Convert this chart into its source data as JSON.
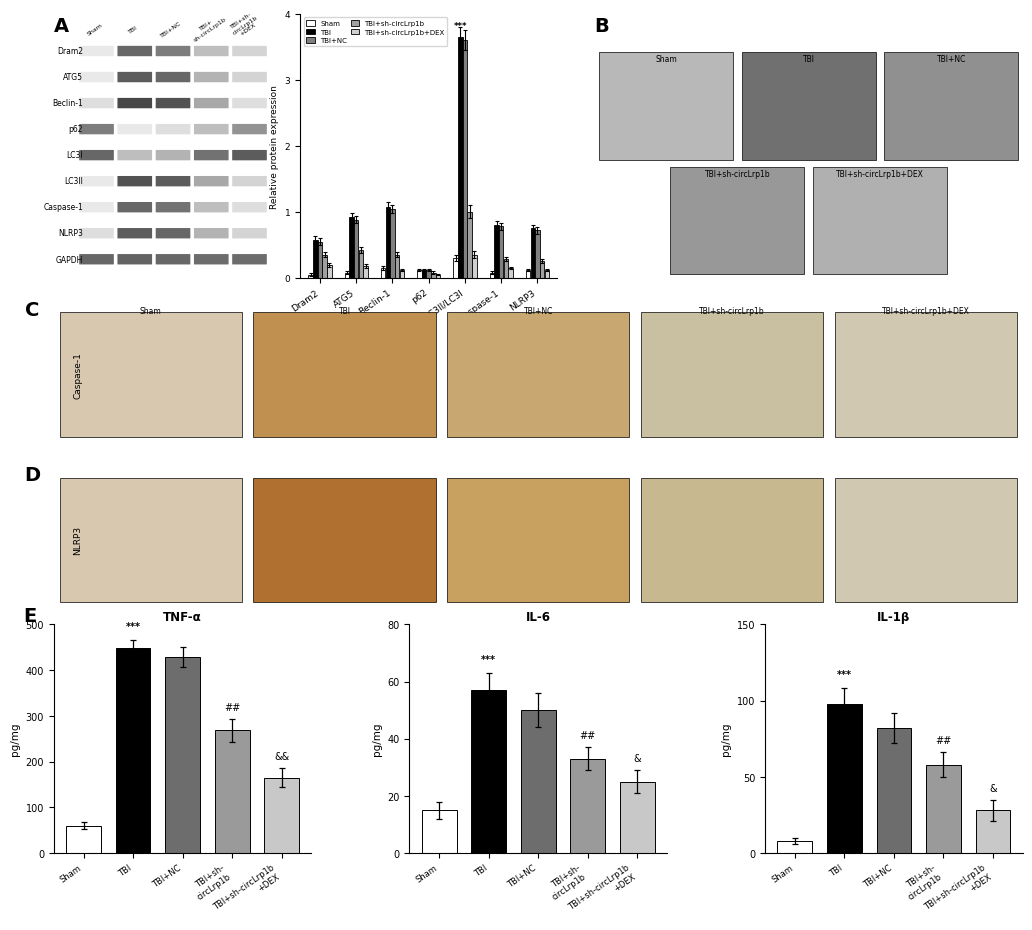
{
  "panel_A_bar": {
    "groups": [
      "Dram2",
      "ATG5",
      "Beclin-1",
      "p62",
      "LC3II/LC3I",
      "Caspase-1",
      "NLRP3"
    ],
    "series": {
      "Sham": [
        0.05,
        0.08,
        0.15,
        0.12,
        0.3,
        0.08,
        0.12
      ],
      "TBI": [
        0.58,
        0.92,
        1.08,
        0.12,
        3.65,
        0.8,
        0.75
      ],
      "TBI+NC": [
        0.55,
        0.88,
        1.05,
        0.12,
        3.6,
        0.78,
        0.72
      ],
      "TBI+sh-circLrp1b": [
        0.35,
        0.42,
        0.35,
        0.08,
        1.0,
        0.28,
        0.25
      ],
      "TBI+sh-circLrp1b+DEX": [
        0.2,
        0.18,
        0.12,
        0.05,
        0.35,
        0.15,
        0.12
      ]
    },
    "errors": {
      "Sham": [
        0.02,
        0.02,
        0.03,
        0.02,
        0.05,
        0.02,
        0.02
      ],
      "TBI": [
        0.05,
        0.06,
        0.07,
        0.02,
        0.15,
        0.06,
        0.05
      ],
      "TBI+NC": [
        0.05,
        0.05,
        0.06,
        0.02,
        0.15,
        0.05,
        0.05
      ],
      "TBI+sh-circLrp1b": [
        0.04,
        0.05,
        0.04,
        0.02,
        0.1,
        0.03,
        0.03
      ],
      "TBI+sh-circLrp1b+DEX": [
        0.03,
        0.03,
        0.02,
        0.01,
        0.05,
        0.02,
        0.02
      ]
    },
    "colors": [
      "#ffffff",
      "#000000",
      "#808080",
      "#a0a0a0",
      "#d0d0d0"
    ],
    "ylim": [
      0,
      4
    ],
    "yticks": [
      0,
      1,
      2,
      3,
      4
    ],
    "ylabel": "Relative protein expression"
  },
  "panel_E_TNFa": {
    "categories": [
      "Sham",
      "TBI",
      "TBI+NC",
      "TBI+sh-\ncircLrp1b",
      "TBI+sh-circLrp1b\n+DEX"
    ],
    "values": [
      60,
      448,
      428,
      268,
      165
    ],
    "errors": [
      8,
      18,
      22,
      25,
      20
    ],
    "colors": [
      "#ffffff",
      "#000000",
      "#6d6d6d",
      "#9a9a9a",
      "#c8c8c8"
    ],
    "title": "TNF-α",
    "ylabel": "pg/mg",
    "ylim": [
      0,
      500
    ],
    "yticks": [
      0,
      100,
      200,
      300,
      400,
      500
    ],
    "sig_TBI": "***",
    "sig_sh": "##",
    "sig_dex": "&&"
  },
  "panel_E_IL6": {
    "categories": [
      "Sham",
      "TBI",
      "TBI+NC",
      "TBI+sh-\ncircLrp1b",
      "TBI+sh-circLrp1b\n+DEX"
    ],
    "values": [
      15,
      57,
      50,
      33,
      25
    ],
    "errors": [
      3,
      6,
      6,
      4,
      4
    ],
    "colors": [
      "#ffffff",
      "#000000",
      "#6d6d6d",
      "#9a9a9a",
      "#c8c8c8"
    ],
    "title": "IL-6",
    "ylabel": "pg/mg",
    "ylim": [
      0,
      80
    ],
    "yticks": [
      0,
      20,
      40,
      60,
      80
    ],
    "sig_TBI": "***",
    "sig_sh": "##",
    "sig_dex": "&"
  },
  "panel_E_IL1b": {
    "categories": [
      "Sham",
      "TBI",
      "TBI+NC",
      "TBI+sh-\ncircLrp1b",
      "TBI+sh-circLrp1b\n+DEX"
    ],
    "values": [
      8,
      98,
      82,
      58,
      28
    ],
    "errors": [
      2,
      10,
      10,
      8,
      7
    ],
    "colors": [
      "#ffffff",
      "#000000",
      "#6d6d6d",
      "#9a9a9a",
      "#c8c8c8"
    ],
    "title": "IL-1β",
    "ylabel": "pg/mg",
    "ylim": [
      0,
      150
    ],
    "yticks": [
      0,
      50,
      100,
      150
    ],
    "sig_TBI": "***",
    "sig_sh": "##",
    "sig_dex": "&"
  },
  "legend_labels": [
    "Sham",
    "TBI",
    "TBI+NC",
    "TBI+sh-circLrp1b",
    "TBI+sh-circLrp1b+DEX"
  ],
  "legend_colors": [
    "#ffffff",
    "#000000",
    "#808080",
    "#a0a0a0",
    "#d0d0d0"
  ],
  "background_color": "#ffffff",
  "label_A": "A",
  "label_B": "B",
  "label_C": "C",
  "label_D": "D",
  "label_E": "E"
}
